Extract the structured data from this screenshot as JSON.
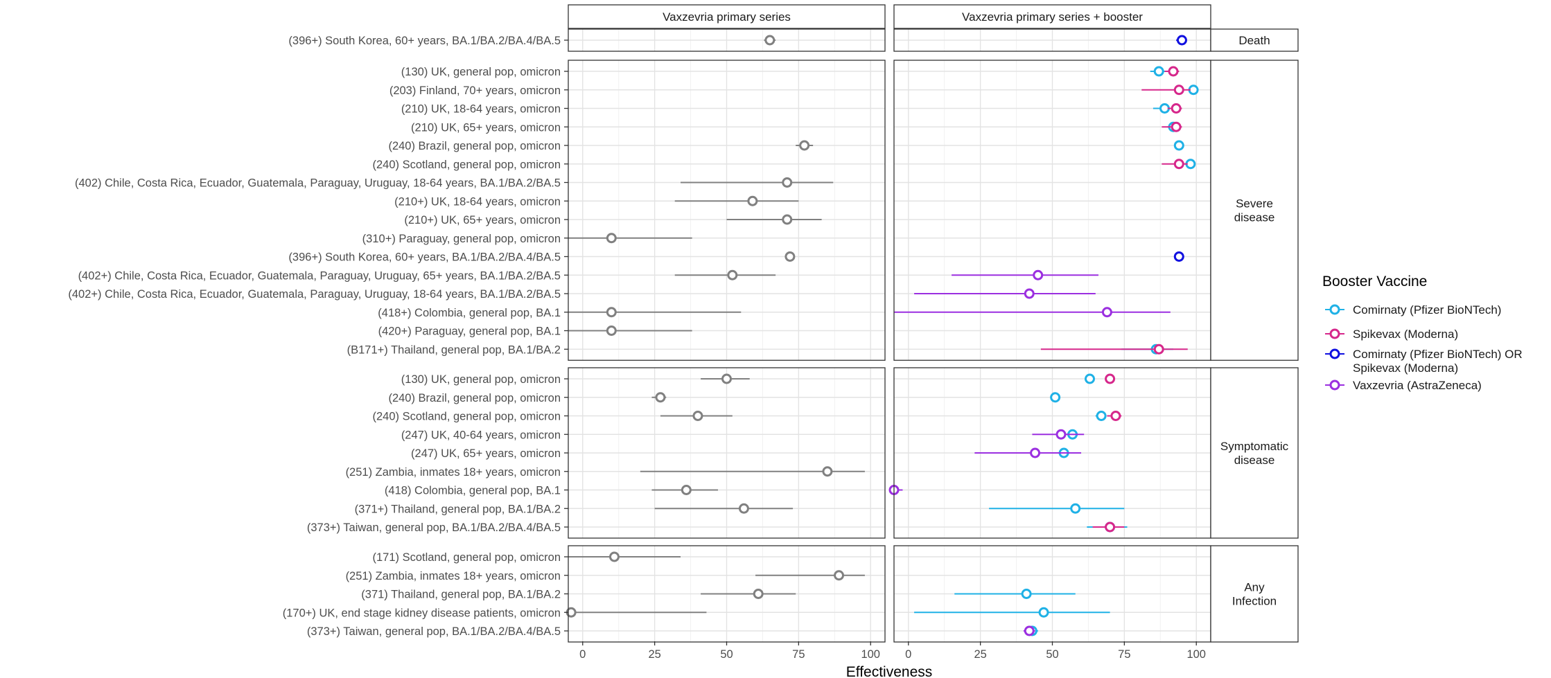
{
  "chart_data": {
    "type": "scatter",
    "xlabel": "Effectiveness",
    "xlim": [
      -5,
      105
    ],
    "xticks": [
      0,
      25,
      50,
      75,
      100
    ],
    "grid": true,
    "columns": [
      "Vaxzevria primary series",
      "Vaxzevria primary series + booster"
    ],
    "groups": [
      {
        "name": "Death",
        "rows": [
          {
            "label": "(396+) South Korea, 60+ years, BA.1/BA.2/BA.4/BA.5",
            "primary": {
              "est": 65,
              "lo": 63,
              "hi": 67
            },
            "booster": [
              {
                "vaccine": "Comirnaty (Pfizer BioNTech) OR Spikevax (Moderna)",
                "est": 95,
                "lo": 93,
                "hi": 96
              }
            ]
          }
        ]
      },
      {
        "name": "Severe disease",
        "rows": [
          {
            "label": "(130) UK, general pop, omicron",
            "primary": null,
            "booster": [
              {
                "vaccine": "Comirnaty (Pfizer BioNTech)",
                "est": 87,
                "lo": 84,
                "hi": 90
              },
              {
                "vaccine": "Spikevax (Moderna)",
                "est": 92,
                "lo": 89,
                "hi": 94
              }
            ]
          },
          {
            "label": "(203) Finland, 70+ years, omicron",
            "primary": null,
            "booster": [
              {
                "vaccine": "Comirnaty (Pfizer BioNTech)",
                "est": 99,
                "lo": 98,
                "hi": 100
              },
              {
                "vaccine": "Spikevax (Moderna)",
                "est": 94,
                "lo": 81,
                "hi": 98
              }
            ]
          },
          {
            "label": "(210) UK, 18-64 years, omicron",
            "primary": null,
            "booster": [
              {
                "vaccine": "Comirnaty (Pfizer BioNTech)",
                "est": 89,
                "lo": 85,
                "hi": 92
              },
              {
                "vaccine": "Spikevax (Moderna)",
                "est": 93,
                "lo": 90,
                "hi": 95
              }
            ]
          },
          {
            "label": "(210) UK, 65+ years, omicron",
            "primary": null,
            "booster": [
              {
                "vaccine": "Comirnaty (Pfizer BioNTech)",
                "est": 92,
                "lo": 90,
                "hi": 93
              },
              {
                "vaccine": "Spikevax (Moderna)",
                "est": 93,
                "lo": 88,
                "hi": 95
              }
            ]
          },
          {
            "label": "(240) Brazil, general pop, omicron",
            "primary": {
              "est": 77,
              "lo": 74,
              "hi": 80
            },
            "booster": [
              {
                "vaccine": "Comirnaty (Pfizer BioNTech)",
                "est": 94,
                "lo": 93,
                "hi": 95
              }
            ]
          },
          {
            "label": "(240) Scotland, general pop, omicron",
            "primary": null,
            "booster": [
              {
                "vaccine": "Comirnaty (Pfizer BioNTech)",
                "est": 98,
                "lo": 97,
                "hi": 99
              },
              {
                "vaccine": "Spikevax (Moderna)",
                "est": 94,
                "lo": 88,
                "hi": 97
              }
            ]
          },
          {
            "label": "(402) Chile, Costa Rica, Ecuador, Guatemala, Paraguay, Uruguay, 18-64 years, BA.1/BA.2/BA.5",
            "primary": {
              "est": 71,
              "lo": 34,
              "hi": 87
            },
            "booster": []
          },
          {
            "label": "(210+) UK, 18-64 years, omicron",
            "primary": {
              "est": 59,
              "lo": 32,
              "hi": 75
            },
            "booster": []
          },
          {
            "label": "(210+) UK, 65+ years, omicron",
            "primary": {
              "est": 71,
              "lo": 50,
              "hi": 83
            },
            "booster": []
          },
          {
            "label": "(310+) Paraguay, general pop, omicron",
            "primary": {
              "est": 10,
              "lo": -5,
              "hi": 38
            },
            "booster": []
          },
          {
            "label": "(396+) South Korea, 60+ years, BA.1/BA.2/BA.4/BA.5",
            "primary": {
              "est": 72,
              "lo": 71,
              "hi": 73
            },
            "booster": [
              {
                "vaccine": "Comirnaty (Pfizer BioNTech) OR Spikevax (Moderna)",
                "est": 94,
                "lo": 93,
                "hi": 95
              }
            ]
          },
          {
            "label": "(402+) Chile, Costa Rica, Ecuador, Guatemala, Paraguay, Uruguay, 65+ years, BA.1/BA.2/BA.5",
            "primary": {
              "est": 52,
              "lo": 32,
              "hi": 67
            },
            "booster": [
              {
                "vaccine": "Vaxzevria (AstraZeneca)",
                "est": 45,
                "lo": 15,
                "hi": 66
              }
            ]
          },
          {
            "label": "(402+) Chile, Costa Rica, Ecuador, Guatemala, Paraguay, Uruguay, 18-64 years, BA.1/BA.2/BA.5",
            "primary": null,
            "booster": [
              {
                "vaccine": "Vaxzevria (AstraZeneca)",
                "est": 42,
                "lo": 2,
                "hi": 65
              }
            ]
          },
          {
            "label": "(418+) Colombia, general pop, BA.1",
            "primary": {
              "est": 10,
              "lo": -5,
              "hi": 55
            },
            "booster": [
              {
                "vaccine": "Vaxzevria (AstraZeneca)",
                "est": 69,
                "lo": -5,
                "hi": 91
              }
            ]
          },
          {
            "label": "(420+) Paraguay, general pop, BA.1",
            "primary": {
              "est": 10,
              "lo": -5,
              "hi": 38
            },
            "booster": []
          },
          {
            "label": "(B171+) Thailand, general pop, BA.1/BA.2",
            "primary": null,
            "booster": [
              {
                "vaccine": "Comirnaty (Pfizer BioNTech)",
                "est": 86,
                "lo": 74,
                "hi": 92
              },
              {
                "vaccine": "Spikevax (Moderna)",
                "est": 87,
                "lo": 46,
                "hi": 97
              }
            ]
          }
        ]
      },
      {
        "name": "Symptomatic disease",
        "rows": [
          {
            "label": "(130) UK, general pop, omicron",
            "primary": {
              "est": 50,
              "lo": 41,
              "hi": 58
            },
            "booster": [
              {
                "vaccine": "Comirnaty (Pfizer BioNTech)",
                "est": 63,
                "lo": 62,
                "hi": 64
              },
              {
                "vaccine": "Spikevax (Moderna)",
                "est": 70,
                "lo": 69,
                "hi": 71
              }
            ]
          },
          {
            "label": "(240) Brazil, general pop, omicron",
            "primary": {
              "est": 27,
              "lo": 24,
              "hi": 29
            },
            "booster": [
              {
                "vaccine": "Comirnaty (Pfizer BioNTech)",
                "est": 51,
                "lo": 50,
                "hi": 52
              }
            ]
          },
          {
            "label": "(240) Scotland, general pop, omicron",
            "primary": {
              "est": 40,
              "lo": 27,
              "hi": 52
            },
            "booster": [
              {
                "vaccine": "Comirnaty (Pfizer BioNTech)",
                "est": 67,
                "lo": 65,
                "hi": 68
              },
              {
                "vaccine": "Spikevax (Moderna)",
                "est": 72,
                "lo": 69,
                "hi": 74
              }
            ]
          },
          {
            "label": "(247) UK, 40-64 years, omicron",
            "primary": null,
            "booster": [
              {
                "vaccine": "Comirnaty (Pfizer BioNTech)",
                "est": 57,
                "lo": 55,
                "hi": 59
              },
              {
                "vaccine": "Vaxzevria (AstraZeneca)",
                "est": 53,
                "lo": 43,
                "hi": 61
              }
            ]
          },
          {
            "label": "(247) UK, 65+ years, omicron",
            "primary": null,
            "booster": [
              {
                "vaccine": "Comirnaty (Pfizer BioNTech)",
                "est": 54,
                "lo": 51,
                "hi": 57
              },
              {
                "vaccine": "Vaxzevria (AstraZeneca)",
                "est": 44,
                "lo": 23,
                "hi": 60
              }
            ]
          },
          {
            "label": "(251) Zambia, inmates 18+ years, omicron",
            "primary": {
              "est": 85,
              "lo": 20,
              "hi": 98
            },
            "booster": []
          },
          {
            "label": "(418) Colombia, general pop, BA.1",
            "primary": {
              "est": 36,
              "lo": 24,
              "hi": 47
            },
            "booster": [
              {
                "vaccine": "Vaxzevria (AstraZeneca)",
                "est": -5,
                "lo": -5,
                "hi": -2
              }
            ]
          },
          {
            "label": "(371+) Thailand, general pop, BA.1/BA.2",
            "primary": {
              "est": 56,
              "lo": 25,
              "hi": 73
            },
            "booster": [
              {
                "vaccine": "Comirnaty (Pfizer BioNTech)",
                "est": 58,
                "lo": 28,
                "hi": 75
              }
            ]
          },
          {
            "label": "(373+) Taiwan, general pop, BA.1/BA.2/BA.4/BA.5",
            "primary": null,
            "booster": [
              {
                "vaccine": "Comirnaty (Pfizer BioNTech)",
                "est": 70,
                "lo": 62,
                "hi": 76
              },
              {
                "vaccine": "Spikevax (Moderna)",
                "est": 70,
                "lo": 64,
                "hi": 75
              }
            ]
          }
        ]
      },
      {
        "name": "Any Infection",
        "rows": [
          {
            "label": "(171) Scotland, general pop, omicron",
            "primary": {
              "est": 11,
              "lo": -5,
              "hi": 34
            },
            "booster": []
          },
          {
            "label": "(251) Zambia, inmates 18+ years, omicron",
            "primary": {
              "est": 89,
              "lo": 60,
              "hi": 98
            },
            "booster": []
          },
          {
            "label": "(371) Thailand, general pop, BA.1/BA.2",
            "primary": {
              "est": 61,
              "lo": 41,
              "hi": 74
            },
            "booster": [
              {
                "vaccine": "Comirnaty (Pfizer BioNTech)",
                "est": 41,
                "lo": 16,
                "hi": 58
              }
            ]
          },
          {
            "label": "(170+) UK, end stage kidney disease patients, omicron",
            "primary": {
              "est": -4,
              "lo": -5,
              "hi": 43
            },
            "booster": [
              {
                "vaccine": "Comirnaty (Pfizer BioNTech)",
                "est": 47,
                "lo": 2,
                "hi": 70
              }
            ]
          },
          {
            "label": "(373+) Taiwan, general pop, BA.1/BA.2/BA.4/BA.5",
            "primary": null,
            "booster": [
              {
                "vaccine": "Comirnaty (Pfizer BioNTech)",
                "est": 43,
                "lo": 41,
                "hi": 45
              },
              {
                "vaccine": "Vaxzevria (AstraZeneca)",
                "est": 42,
                "lo": 40,
                "hi": 44
              }
            ]
          }
        ]
      }
    ],
    "legend": {
      "title": "Booster Vaccine",
      "placement": "right",
      "items": [
        {
          "lines": [
            "Comirnaty (Pfizer BioNTech)"
          ],
          "color": "#1FB1E6"
        },
        {
          "lines": [
            "Spikevax (Moderna)"
          ],
          "color": "#D6278B"
        },
        {
          "lines": [
            "Comirnaty (Pfizer BioNTech) OR",
            "Spikevax (Moderna)"
          ],
          "color": "#1010E0"
        },
        {
          "lines": [
            "Vaxzevria (AstraZeneca)"
          ],
          "color": "#9B2FE0"
        }
      ]
    },
    "colors": {
      "primary": "#808080",
      "Comirnaty (Pfizer BioNTech)": "#1FB1E6",
      "Spikevax (Moderna)": "#D6278B",
      "Comirnaty (Pfizer BioNTech) OR Spikevax (Moderna)": "#1010E0",
      "Vaxzevria (AstraZeneca)": "#9B2FE0"
    }
  }
}
